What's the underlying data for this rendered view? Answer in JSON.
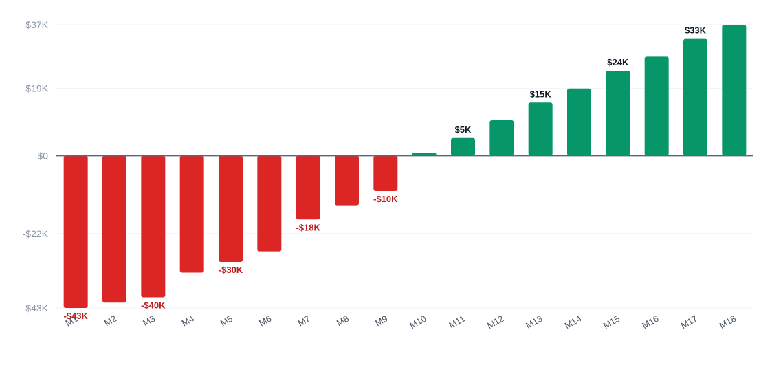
{
  "chart_data": {
    "type": "bar",
    "categories": [
      "M1",
      "M2",
      "M3",
      "M4",
      "M5",
      "M6",
      "M7",
      "M8",
      "M9",
      "M10",
      "M11",
      "M12",
      "M13",
      "M14",
      "M15",
      "M16",
      "M17",
      "M18"
    ],
    "values": [
      -43,
      -41.5,
      -40,
      -33,
      -30,
      -27,
      -18,
      -14,
      -10,
      0.8,
      5,
      10,
      15,
      19,
      24,
      28,
      33,
      37
    ],
    "value_unit": "$K",
    "data_labels": [
      {
        "index": 0,
        "text": "-$43K"
      },
      {
        "index": 2,
        "text": "-$40K"
      },
      {
        "index": 4,
        "text": "-$30K"
      },
      {
        "index": 6,
        "text": "-$18K"
      },
      {
        "index": 8,
        "text": "-$10K"
      },
      {
        "index": 10,
        "text": "$5K"
      },
      {
        "index": 12,
        "text": "$15K"
      },
      {
        "index": 14,
        "text": "$24K"
      },
      {
        "index": 16,
        "text": "$33K"
      }
    ],
    "y_ticks": [
      {
        "value": 37,
        "label": "$37K"
      },
      {
        "value": 19,
        "label": "$19K"
      },
      {
        "value": 0,
        "label": "$0"
      },
      {
        "value": -22,
        "label": "-$22K"
      },
      {
        "value": -43,
        "label": "-$43K"
      }
    ],
    "ylim": [
      -43,
      37
    ],
    "grid": true,
    "colors": {
      "positive": "#079669",
      "negative": "#dc2626",
      "positive_label": "#111827",
      "negative_label": "#b91c1c"
    }
  }
}
